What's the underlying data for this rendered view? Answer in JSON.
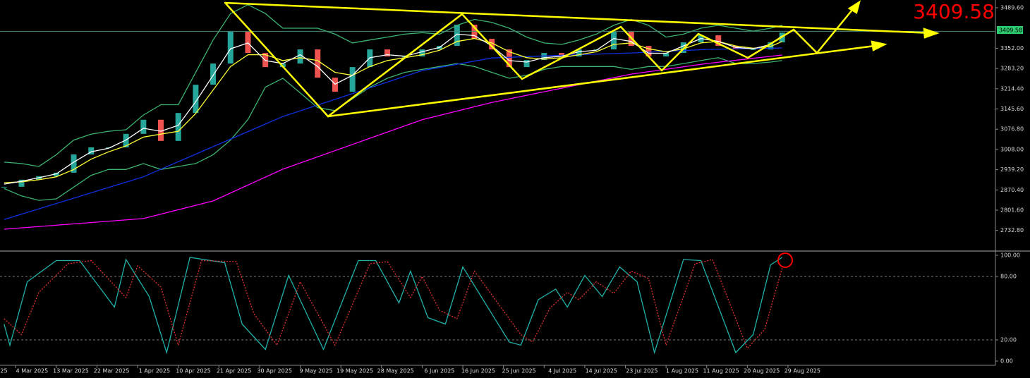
{
  "chart_data": [
    {
      "type": "stock",
      "x": [
        5,
        8,
        11,
        14,
        17,
        20,
        23,
        26,
        29,
        32,
        35,
        38,
        41,
        44,
        47,
        50,
        53,
        56,
        59,
        62,
        65,
        68,
        71,
        74,
        77,
        80,
        83,
        86,
        89,
        92,
        95,
        98,
        101,
        104,
        107,
        110,
        113,
        116,
        119,
        122,
        125,
        128,
        131,
        134,
        137,
        139
      ],
      "close": [
        2881,
        2905,
        2917,
        2929,
        2991,
        3015,
        3015,
        3061,
        3109,
        3037,
        3132,
        3228,
        3300,
        3408,
        3336,
        3288,
        3300,
        3348,
        3252,
        3204,
        3288,
        3348,
        3324,
        3324,
        3348,
        3360,
        3432,
        3384,
        3348,
        3288,
        3312,
        3336,
        3324,
        3348,
        3348,
        3408,
        3360,
        3324,
        3336,
        3372,
        3396,
        3360,
        3348,
        3348,
        3372,
        3405
      ],
      "up_color": "#26a69a",
      "down_color": "#ef5350",
      "current_price": 3409.58,
      "xlim": [
        4.3,
        175.6
      ],
      "ylim": [
        2665,
        3516
      ],
      "yticks": [
        {
          "value": 3489.6,
          "label": "3489.60"
        },
        {
          "value": 3352,
          "label": "3352.00"
        },
        {
          "value": 3283.2,
          "label": "3283.20"
        },
        {
          "value": 3214.4,
          "label": "3214.40"
        },
        {
          "value": 3145.6,
          "label": "3145.60"
        },
        {
          "value": 3076.8,
          "label": "3076.80"
        },
        {
          "value": 3008,
          "label": "3008.00"
        },
        {
          "value": 2939.2,
          "label": "2939.20"
        },
        {
          "value": 2870.4,
          "label": "2870.40"
        },
        {
          "value": 2801.6,
          "label": "2801.60"
        },
        {
          "value": 2732.8,
          "label": "2732.80"
        }
      ],
      "series": [
        {
          "color": "#3cb371",
          "x": [
            5,
            8,
            11,
            14,
            17,
            20,
            23,
            26,
            29,
            32,
            35,
            38,
            41,
            44,
            47,
            50,
            53,
            56,
            59,
            62,
            65,
            68,
            71,
            74,
            77,
            80,
            83,
            86,
            89,
            92,
            95,
            98,
            101,
            104,
            107,
            110,
            113,
            116,
            119,
            122,
            125,
            128,
            131,
            134,
            137,
            139
          ],
          "values": [
            2965,
            2960,
            2950,
            2990,
            3040,
            3060,
            3070,
            3075,
            3125,
            3160,
            3160,
            3270,
            3380,
            3470,
            3500,
            3470,
            3420,
            3420,
            3420,
            3400,
            3370,
            3380,
            3390,
            3400,
            3405,
            3400,
            3430,
            3450,
            3440,
            3420,
            3390,
            3370,
            3365,
            3380,
            3400,
            3430,
            3450,
            3430,
            3390,
            3400,
            3420,
            3430,
            3420,
            3410,
            3420,
            3430
          ]
        },
        {
          "color": "#3cb371",
          "x": [
            5,
            8,
            11,
            14,
            17,
            20,
            23,
            26,
            29,
            32,
            35,
            38,
            41,
            44,
            47,
            50,
            53,
            56,
            59,
            62,
            65,
            68,
            71,
            74,
            77,
            80,
            83,
            86,
            89,
            92,
            95,
            98,
            101,
            104,
            107,
            110,
            113,
            116,
            119,
            122,
            125,
            128,
            131,
            134,
            137,
            139
          ],
          "values": [
            2875,
            2850,
            2835,
            2840,
            2880,
            2920,
            2940,
            2940,
            2960,
            2940,
            2950,
            2960,
            2990,
            3040,
            3110,
            3220,
            3250,
            3200,
            3150,
            3140,
            3180,
            3220,
            3250,
            3270,
            3280,
            3290,
            3300,
            3290,
            3270,
            3250,
            3260,
            3280,
            3290,
            3290,
            3290,
            3290,
            3280,
            3290,
            3290,
            3300,
            3310,
            3320,
            3300,
            3300,
            3305,
            3310
          ]
        },
        {
          "color": "#ff00ff",
          "x": [
            5,
            29,
            41,
            53,
            65,
            77,
            89,
            101,
            113,
            126,
            139
          ],
          "values": [
            2737,
            2773,
            2833,
            2941,
            3025,
            3109,
            3168,
            3216,
            3264,
            3300,
            3329
          ]
        },
        {
          "color": "#1030e0",
          "x": [
            5,
            29,
            53,
            77,
            89,
            101,
            113,
            126,
            139
          ],
          "values": [
            2770,
            2915,
            3120,
            3276,
            3319,
            3328,
            3336,
            3348,
            3353
          ]
        },
        {
          "color": "#ffff33",
          "x": [
            5,
            8,
            11,
            14,
            17,
            20,
            23,
            26,
            29,
            32,
            35,
            38,
            41,
            44,
            47,
            50,
            53,
            56,
            59,
            62,
            65,
            68,
            71,
            74,
            77,
            80,
            83,
            86,
            89,
            92,
            95,
            98,
            101,
            104,
            107,
            110,
            113,
            116,
            119,
            122,
            125,
            128,
            131,
            134,
            137,
            139
          ],
          "values": [
            2895,
            2898,
            2905,
            2915,
            2940,
            2975,
            3000,
            3020,
            3050,
            3060,
            3070,
            3130,
            3210,
            3290,
            3330,
            3330,
            3310,
            3320,
            3310,
            3270,
            3260,
            3290,
            3310,
            3320,
            3330,
            3345,
            3375,
            3385,
            3370,
            3340,
            3320,
            3315,
            3320,
            3330,
            3340,
            3365,
            3370,
            3350,
            3340,
            3350,
            3370,
            3375,
            3360,
            3352,
            3358,
            3375
          ]
        },
        {
          "color": "#ffffff",
          "x": [
            5,
            8,
            11,
            14,
            17,
            20,
            23,
            26,
            29,
            32,
            35,
            38,
            41,
            44,
            47,
            50,
            53,
            56,
            59,
            62,
            65,
            68,
            71,
            74,
            77,
            80,
            83,
            86,
            89,
            92,
            95,
            98,
            101,
            104,
            107,
            110,
            113,
            116,
            119,
            122,
            125,
            128,
            131,
            134,
            137,
            139
          ],
          "values": [
            2890,
            2900,
            2912,
            2925,
            2965,
            3000,
            3012,
            3040,
            3080,
            3070,
            3090,
            3170,
            3260,
            3350,
            3370,
            3310,
            3300,
            3330,
            3290,
            3230,
            3260,
            3320,
            3330,
            3325,
            3340,
            3355,
            3400,
            3395,
            3360,
            3310,
            3305,
            3320,
            3325,
            3340,
            3345,
            3385,
            3375,
            3335,
            3335,
            3360,
            3385,
            3375,
            3355,
            3350,
            3365,
            3395
          ]
        }
      ]
    },
    {
      "type": "line",
      "xlim": [
        4.3,
        175.6
      ],
      "ylim": [
        -4,
        103.3
      ],
      "yticks": [
        {
          "value": 100,
          "label": "100.00"
        },
        {
          "value": 80,
          "label": "80.00"
        },
        {
          "value": 20,
          "label": "20.00"
        },
        {
          "value": 0,
          "label": "0.00"
        }
      ],
      "levels": [
        80,
        20
      ],
      "xticks": [
        {
          "value": 0,
          "label": "25"
        },
        {
          "value": 7,
          "label": "4 Mar 2025"
        },
        {
          "value": 14,
          "label": "13 Mar 2025"
        },
        {
          "value": 21,
          "label": "22 Mar 2025"
        },
        {
          "value": 28,
          "label": "1 Apr 2025"
        },
        {
          "value": 35,
          "label": "10 Apr 2025"
        },
        {
          "value": 42,
          "label": "21 Apr 2025"
        },
        {
          "value": 49,
          "label": "30 Apr 2025"
        },
        {
          "value": 56,
          "label": "9 May 2025"
        },
        {
          "value": 63,
          "label": "19 May 2025"
        },
        {
          "value": 70,
          "label": "28 May 2025"
        },
        {
          "value": 77,
          "label": "6 Jun 2025"
        },
        {
          "value": 84,
          "label": "16 Jun 2025"
        },
        {
          "value": 91,
          "label": "25 Jun 2025"
        },
        {
          "value": 98,
          "label": "4 Jul 2025"
        },
        {
          "value": 105,
          "label": "14 Jul 2025"
        },
        {
          "value": 112,
          "label": "23 Jul 2025"
        },
        {
          "value": 119,
          "label": "1 Aug 2025"
        },
        {
          "value": 126,
          "label": "11 Aug 2025"
        },
        {
          "value": 133,
          "label": "20 Aug 2025"
        },
        {
          "value": 140,
          "label": "29 Aug 2025"
        }
      ],
      "series": [
        {
          "color": "#20b2aa",
          "dash": false,
          "x": [
            5,
            6,
            9,
            14,
            18,
            24,
            26,
            30,
            33,
            37,
            43,
            46,
            50,
            54,
            60,
            66,
            69,
            73,
            75,
            78,
            81,
            84,
            92,
            94,
            97,
            100,
            102,
            105,
            108,
            111,
            114,
            117,
            122,
            125,
            131,
            134,
            137,
            139
          ],
          "values": [
            35,
            15,
            75,
            95,
            95,
            51,
            96,
            61,
            8,
            98,
            93,
            35,
            11,
            81,
            11,
            95,
            95,
            55,
            85,
            41,
            35,
            89,
            18,
            15,
            58,
            68,
            51,
            81,
            61,
            89,
            75,
            8,
            96,
            95,
            8,
            25,
            91,
            98
          ]
        },
        {
          "color": "#e03030",
          "dash": true,
          "x": [
            5,
            8,
            11,
            16,
            20,
            26,
            28,
            32,
            35,
            39,
            45,
            48,
            52,
            56,
            62,
            68,
            71,
            75,
            77,
            80,
            83,
            86,
            94,
            96,
            99,
            102,
            104,
            107,
            110,
            113,
            116,
            119,
            124,
            127,
            133,
            136,
            139
          ],
          "values": [
            40,
            25,
            65,
            92,
            95,
            60,
            90,
            70,
            15,
            95,
            94,
            45,
            15,
            75,
            15,
            92,
            94,
            60,
            80,
            48,
            40,
            85,
            25,
            18,
            50,
            65,
            58,
            75,
            64,
            85,
            78,
            15,
            92,
            96,
            12,
            30,
            88
          ]
        }
      ]
    }
  ]
}
